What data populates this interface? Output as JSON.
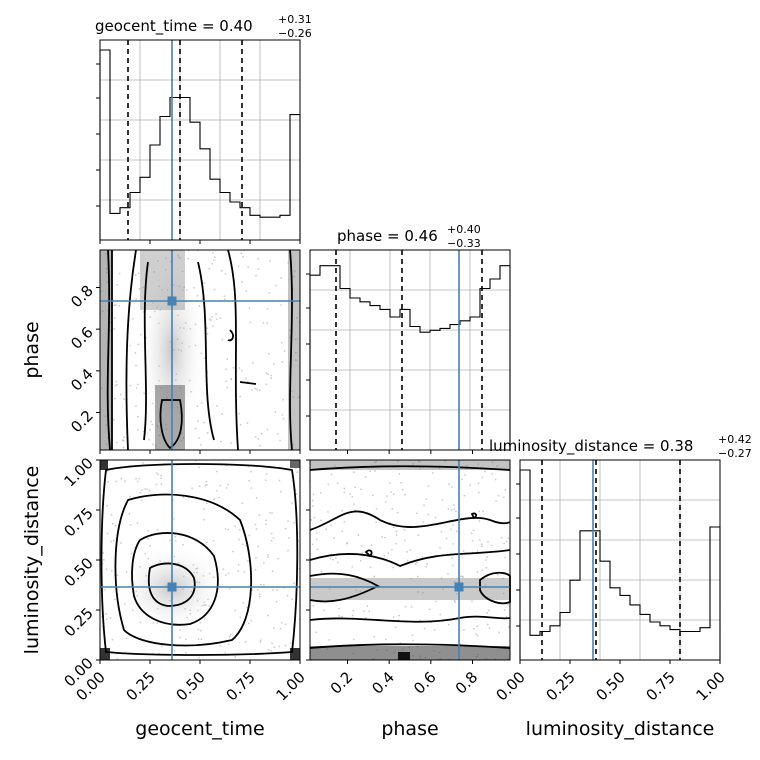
{
  "chart_data": {
    "type": "corner",
    "parameters": [
      "geocent_time",
      "phase",
      "luminosity_distance"
    ],
    "truths": {
      "geocent_time": 0.36,
      "phase": 0.745,
      "luminosity_distance": 0.365
    },
    "colors": {
      "truth": "#4682b4",
      "hist": "#000000",
      "grid": "#b0b0b0"
    },
    "titles": [
      {
        "param": "geocent_time",
        "text": "geocent_time = 0.40",
        "sup": "+0.31",
        "sub": "−0.26"
      },
      {
        "param": "phase",
        "text": "phase = 0.46",
        "sup": "+0.40",
        "sub": "−0.33"
      },
      {
        "param": "luminosity_distance",
        "text": "luminosity_distance = 0.38",
        "sup": "+0.42",
        "sub": "−0.27"
      }
    ],
    "panels": {
      "geocent_time": {
        "xlim": [
          0,
          1
        ],
        "quantiles": [
          0.14,
          0.4,
          0.71
        ],
        "bin_edges": [
          0,
          0.05,
          0.1,
          0.15,
          0.2,
          0.25,
          0.3,
          0.35,
          0.4,
          0.45,
          0.5,
          0.55,
          0.6,
          0.65,
          0.7,
          0.75,
          0.8,
          0.85,
          0.9,
          0.95,
          1.0
        ],
        "counts": [
          1.0,
          0.14,
          0.17,
          0.25,
          0.33,
          0.5,
          0.65,
          0.75,
          0.75,
          0.62,
          0.48,
          0.32,
          0.25,
          0.2,
          0.17,
          0.13,
          0.12,
          0.12,
          0.13,
          0.66
        ]
      },
      "phase": {
        "xlim": [
          0,
          1
        ],
        "quantiles": [
          0.13,
          0.46,
          0.86
        ],
        "bin_edges": [
          0,
          0.05,
          0.1,
          0.15,
          0.2,
          0.25,
          0.3,
          0.35,
          0.4,
          0.45,
          0.5,
          0.55,
          0.6,
          0.65,
          0.7,
          0.75,
          0.8,
          0.85,
          0.9,
          0.95,
          1.0
        ],
        "counts": [
          0.92,
          0.97,
          0.97,
          0.85,
          0.8,
          0.78,
          0.76,
          0.74,
          0.7,
          0.74,
          0.65,
          0.62,
          0.63,
          0.64,
          0.66,
          0.68,
          0.7,
          0.85,
          0.9,
          0.97
        ]
      },
      "luminosity_distance": {
        "xlim": [
          0,
          1
        ],
        "quantiles": [
          0.11,
          0.38,
          0.8
        ],
        "bin_edges": [
          0,
          0.05,
          0.1,
          0.15,
          0.2,
          0.25,
          0.3,
          0.35,
          0.4,
          0.45,
          0.5,
          0.55,
          0.6,
          0.65,
          0.7,
          0.75,
          0.8,
          0.85,
          0.9,
          0.95,
          1.0
        ],
        "counts": [
          1.0,
          0.13,
          0.15,
          0.18,
          0.25,
          0.42,
          0.68,
          0.68,
          0.52,
          0.38,
          0.34,
          0.29,
          0.24,
          0.2,
          0.18,
          0.16,
          0.15,
          0.15,
          0.17,
          0.7
        ]
      }
    },
    "tick_labels": {
      "geocent_time": [
        "0.00",
        "0.25",
        "0.50",
        "0.75",
        "1.00"
      ],
      "phase_x": [
        "0.2",
        "0.4",
        "0.6",
        "0.8"
      ],
      "phase_y": [
        "0.2",
        "0.4",
        "0.6",
        "0.8"
      ],
      "luminosity_distance": [
        "0.00",
        "0.25",
        "0.50",
        "0.75",
        "1.00"
      ]
    },
    "xlabels": [
      "geocent_time",
      "phase",
      "luminosity_distance"
    ],
    "ylabels": [
      "phase",
      "luminosity_distance"
    ],
    "grid": true
  }
}
